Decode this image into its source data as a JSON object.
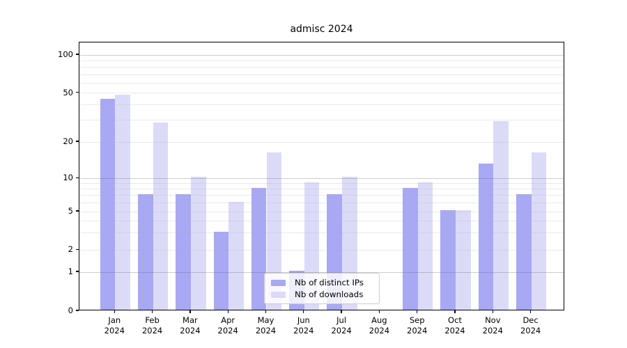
{
  "chart_data": {
    "type": "bar",
    "title": "admisc 2024",
    "months": [
      "Jan",
      "Feb",
      "Mar",
      "Apr",
      "May",
      "Jun",
      "Jul",
      "Aug",
      "Sep",
      "Oct",
      "Nov",
      "Dec"
    ],
    "year": "2024",
    "categories": [
      "Jan 2024",
      "Feb 2024",
      "Mar 2024",
      "Apr 2024",
      "May 2024",
      "Jun 2024",
      "Jul 2024",
      "Aug 2024",
      "Sep 2024",
      "Oct 2024",
      "Nov 2024",
      "Dec 2024"
    ],
    "series": [
      {
        "name": "Nb of distinct IPs",
        "color": "#a8a8f5",
        "values": [
          44,
          7,
          7,
          3,
          8,
          1,
          7,
          0,
          8,
          5,
          13,
          7
        ]
      },
      {
        "name": "Nb of downloads",
        "color": "#dbdbf8",
        "values": [
          47,
          28,
          10,
          6,
          16,
          9,
          10,
          0,
          9,
          5,
          29,
          16
        ]
      }
    ],
    "yscale": "symlog",
    "yticks": [
      0,
      1,
      2,
      5,
      10,
      20,
      50,
      100
    ],
    "ylim": [
      0,
      115
    ],
    "xlabel": "",
    "ylabel": "",
    "grid": true,
    "grid_position": "above-bars",
    "legend_position": "lower center",
    "colors": {
      "major_gridline": "rgba(110,110,110,0.35)",
      "minor_gridline": "rgba(175,175,175,0.28)",
      "axis": "#000000",
      "background": "#ffffff"
    }
  }
}
